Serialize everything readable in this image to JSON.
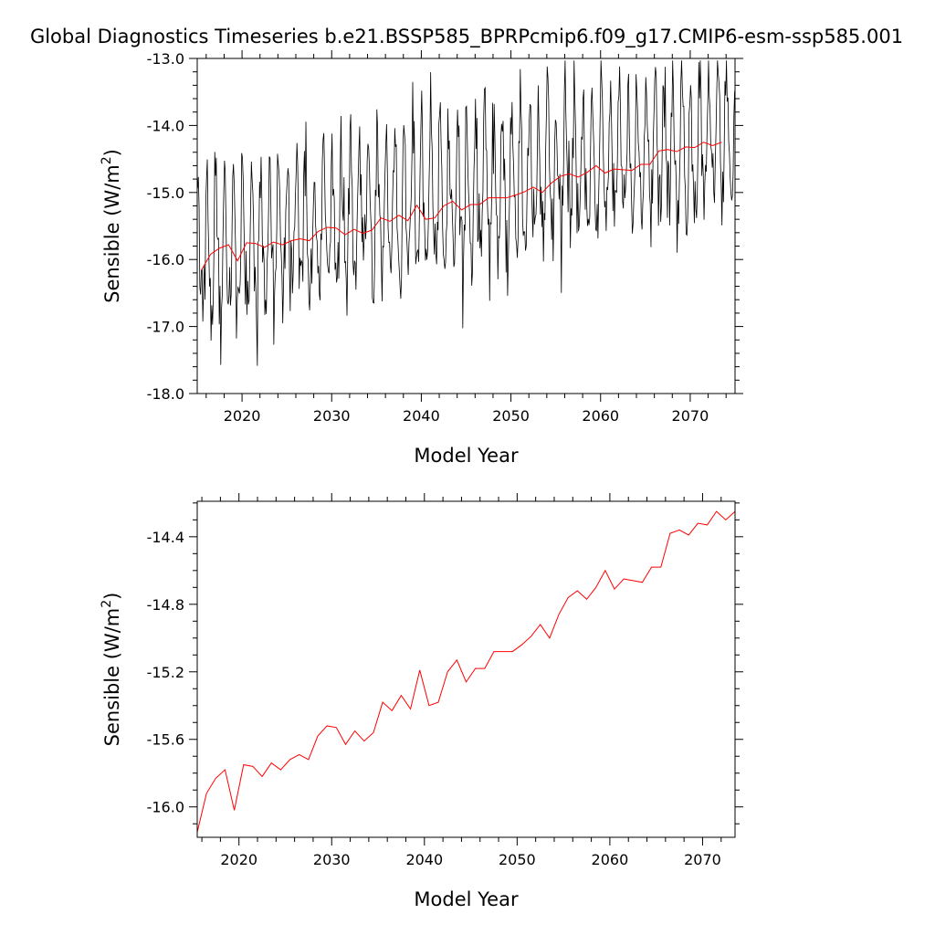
{
  "title": "Global Diagnostics Timeseries b.e21.BSSP585_BPRPcmip6.f09_g17.CMIP6-esm-ssp585.001",
  "chart_data": [
    {
      "type": "line",
      "xlabel": "Model Year",
      "ylabel": "Sensible (W/m2)",
      "ylabel_main": "Sensible (W/m",
      "ylabel_sup": "2",
      "ylabel_close": ")",
      "xlim": [
        2015,
        2075
      ],
      "ylim": [
        -18.0,
        -13.0
      ],
      "xticks": [
        2020,
        2030,
        2040,
        2050,
        2060,
        2070
      ],
      "yticks": [
        -18.0,
        -17.0,
        -16.0,
        -15.0,
        -14.0,
        -13.0
      ],
      "ytick_labels": [
        "-18.0",
        "-17.0",
        "-16.0",
        "-15.0",
        "-14.0",
        "-13.0"
      ],
      "series": [
        {
          "kind": "monthly",
          "color": "#000000",
          "start_year": 2015,
          "months": 720,
          "trend_start": -15.95,
          "trend_end": -14.1,
          "seasonal_amplitude": 0.95
        },
        {
          "kind": "annual",
          "color": "#ff0000",
          "x": [
            2015.5,
            2016.5,
            2017.5,
            2018.5,
            2019.5,
            2020.5,
            2021.5,
            2022.5,
            2023.5,
            2024.5,
            2025.5,
            2026.5,
            2027.5,
            2028.5,
            2029.5,
            2030.5,
            2031.5,
            2032.5,
            2033.5,
            2034.5,
            2035.5,
            2036.5,
            2037.5,
            2038.5,
            2039.5,
            2040.5,
            2041.5,
            2042.5,
            2043.5,
            2044.5,
            2045.5,
            2046.5,
            2047.5,
            2048.5,
            2049.5,
            2050.5,
            2051.5,
            2052.5,
            2053.5,
            2054.5,
            2055.5,
            2056.5,
            2057.5,
            2058.5,
            2059.5,
            2060.5,
            2061.5,
            2062.5,
            2063.5,
            2064.5,
            2065.5,
            2066.5,
            2067.5,
            2068.5,
            2069.5,
            2070.5,
            2071.5,
            2072.5,
            2073.5
          ],
          "values": [
            -16.15,
            -15.92,
            -15.83,
            -15.78,
            -16.02,
            -15.75,
            -15.76,
            -15.82,
            -15.74,
            -15.78,
            -15.72,
            -15.69,
            -15.72,
            -15.58,
            -15.52,
            -15.53,
            -15.63,
            -15.55,
            -15.61,
            -15.56,
            -15.38,
            -15.43,
            -15.34,
            -15.42,
            -15.19,
            -15.4,
            -15.38,
            -15.2,
            -15.13,
            -15.26,
            -15.18,
            -15.18,
            -15.08,
            -15.08,
            -15.08,
            -15.04,
            -14.99,
            -14.92,
            -15.0,
            -14.86,
            -14.76,
            -14.72,
            -14.77,
            -14.7,
            -14.6,
            -14.71,
            -14.65,
            -14.66,
            -14.67,
            -14.58,
            -14.58,
            -14.38,
            -14.36,
            -14.39,
            -14.32,
            -14.33,
            -14.25,
            -14.3,
            -14.25
          ]
        }
      ]
    },
    {
      "type": "line",
      "xlabel": "Model Year",
      "ylabel": "Sensible (W/m2)",
      "ylabel_main": "Sensible (W/m",
      "ylabel_sup": "2",
      "ylabel_close": ")",
      "xlim": [
        2015.5,
        2073.5
      ],
      "ylim": [
        -16.18,
        -14.19
      ],
      "xticks": [
        2020,
        2030,
        2040,
        2050,
        2060,
        2070
      ],
      "yticks": [
        -16.0,
        -15.6,
        -15.2,
        -14.8,
        -14.4
      ],
      "ytick_labels": [
        "-16.0",
        "-15.6",
        "-15.2",
        "-14.8",
        "-14.4"
      ],
      "series": [
        {
          "kind": "annual",
          "color": "#ff0000",
          "x": [
            2015.5,
            2016.5,
            2017.5,
            2018.5,
            2019.5,
            2020.5,
            2021.5,
            2022.5,
            2023.5,
            2024.5,
            2025.5,
            2026.5,
            2027.5,
            2028.5,
            2029.5,
            2030.5,
            2031.5,
            2032.5,
            2033.5,
            2034.5,
            2035.5,
            2036.5,
            2037.5,
            2038.5,
            2039.5,
            2040.5,
            2041.5,
            2042.5,
            2043.5,
            2044.5,
            2045.5,
            2046.5,
            2047.5,
            2048.5,
            2049.5,
            2050.5,
            2051.5,
            2052.5,
            2053.5,
            2054.5,
            2055.5,
            2056.5,
            2057.5,
            2058.5,
            2059.5,
            2060.5,
            2061.5,
            2062.5,
            2063.5,
            2064.5,
            2065.5,
            2066.5,
            2067.5,
            2068.5,
            2069.5,
            2070.5,
            2071.5,
            2072.5,
            2073.5
          ],
          "values": [
            -16.15,
            -15.92,
            -15.83,
            -15.78,
            -16.02,
            -15.75,
            -15.76,
            -15.82,
            -15.74,
            -15.78,
            -15.72,
            -15.69,
            -15.72,
            -15.58,
            -15.52,
            -15.53,
            -15.63,
            -15.55,
            -15.61,
            -15.56,
            -15.38,
            -15.43,
            -15.34,
            -15.42,
            -15.19,
            -15.4,
            -15.38,
            -15.2,
            -15.13,
            -15.26,
            -15.18,
            -15.18,
            -15.08,
            -15.08,
            -15.08,
            -15.04,
            -14.99,
            -14.92,
            -15.0,
            -14.86,
            -14.76,
            -14.72,
            -14.77,
            -14.7,
            -14.6,
            -14.71,
            -14.65,
            -14.66,
            -14.67,
            -14.58,
            -14.58,
            -14.38,
            -14.36,
            -14.39,
            -14.32,
            -14.33,
            -14.25,
            -14.3,
            -14.25
          ]
        }
      ]
    }
  ]
}
